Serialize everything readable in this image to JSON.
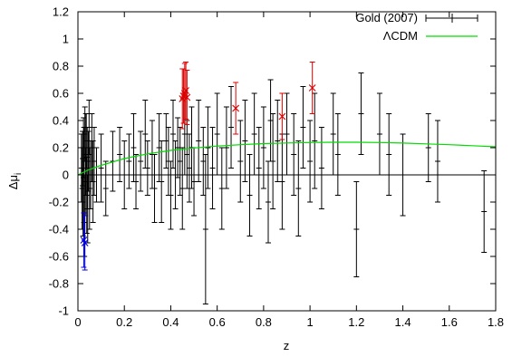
{
  "chart_data": {
    "type": "scatter",
    "title": "",
    "xlabel": "z",
    "ylabel_main": "Δμ",
    "ylabel_sub": "i",
    "xlim": [
      0,
      1.8
    ],
    "ylim": [
      -1,
      1.2
    ],
    "x_ticks": [
      0,
      0.2,
      0.4,
      0.6,
      0.8,
      1,
      1.2,
      1.4,
      1.6,
      1.8
    ],
    "x_tick_labels": [
      "0",
      "0.2",
      "0.4",
      "0.6",
      "0.8",
      "1",
      "1.2",
      "1.4",
      "1.6",
      "1.8"
    ],
    "y_ticks": [
      -1,
      -0.8,
      -0.6,
      -0.4,
      -0.2,
      0,
      0.2,
      0.4,
      0.6,
      0.8,
      1,
      1.2
    ],
    "y_tick_labels": [
      "-1",
      "-0.8",
      "-0.6",
      "-0.4",
      "-0.2",
      "0",
      "0.2",
      "0.4",
      "0.6",
      "0.8",
      "1",
      "1.2"
    ],
    "grid": false,
    "legend_position": "top-right",
    "zero_line": true,
    "series": [
      {
        "name": "Gold (2007)",
        "style": "points-with-errorbars",
        "color": "#000000",
        "points": [
          {
            "x": 0.015,
            "y": 0.05,
            "err": 0.25
          },
          {
            "x": 0.018,
            "y": -0.1,
            "err": 0.3
          },
          {
            "x": 0.02,
            "y": 0.12,
            "err": 0.2
          },
          {
            "x": 0.022,
            "y": -0.2,
            "err": 0.25
          },
          {
            "x": 0.024,
            "y": 0.2,
            "err": 0.22
          },
          {
            "x": 0.026,
            "y": 0.0,
            "err": 0.35
          },
          {
            "x": 0.028,
            "y": -0.3,
            "err": 0.3
          },
          {
            "x": 0.03,
            "y": 0.3,
            "err": 0.2
          },
          {
            "x": 0.032,
            "y": -0.05,
            "err": 0.25
          },
          {
            "x": 0.034,
            "y": 0.15,
            "err": 0.3
          },
          {
            "x": 0.036,
            "y": 0.25,
            "err": 0.2
          },
          {
            "x": 0.038,
            "y": -0.15,
            "err": 0.28
          },
          {
            "x": 0.04,
            "y": 0.05,
            "err": 0.3
          },
          {
            "x": 0.042,
            "y": -0.25,
            "err": 0.25
          },
          {
            "x": 0.045,
            "y": 0.1,
            "err": 0.22
          },
          {
            "x": 0.048,
            "y": 0.35,
            "err": 0.2
          },
          {
            "x": 0.05,
            "y": -0.1,
            "err": 0.3
          },
          {
            "x": 0.055,
            "y": 0.0,
            "err": 0.25
          },
          {
            "x": 0.06,
            "y": 0.2,
            "err": 0.25
          },
          {
            "x": 0.065,
            "y": -0.05,
            "err": 0.3
          },
          {
            "x": 0.07,
            "y": 0.1,
            "err": 0.25
          },
          {
            "x": 0.08,
            "y": 0.0,
            "err": 0.2
          },
          {
            "x": 0.1,
            "y": 0.05,
            "err": 0.25
          },
          {
            "x": 0.12,
            "y": -0.1,
            "err": 0.2
          },
          {
            "x": 0.15,
            "y": 0.1,
            "err": 0.22
          },
          {
            "x": 0.18,
            "y": 0.15,
            "err": 0.2
          },
          {
            "x": 0.2,
            "y": 0.0,
            "err": 0.25
          },
          {
            "x": 0.22,
            "y": 0.1,
            "err": 0.2
          },
          {
            "x": 0.24,
            "y": 0.2,
            "err": 0.25
          },
          {
            "x": 0.25,
            "y": -0.05,
            "err": 0.2
          },
          {
            "x": 0.27,
            "y": 0.1,
            "err": 0.22
          },
          {
            "x": 0.29,
            "y": 0.3,
            "err": 0.25
          },
          {
            "x": 0.3,
            "y": 0.05,
            "err": 0.2
          },
          {
            "x": 0.32,
            "y": 0.15,
            "err": 0.25
          },
          {
            "x": 0.33,
            "y": -0.1,
            "err": 0.25
          },
          {
            "x": 0.35,
            "y": 0.2,
            "err": 0.25
          },
          {
            "x": 0.36,
            "y": -0.05,
            "err": 0.3
          },
          {
            "x": 0.38,
            "y": 0.25,
            "err": 0.2
          },
          {
            "x": 0.39,
            "y": 0.1,
            "err": 0.25
          },
          {
            "x": 0.4,
            "y": -0.15,
            "err": 0.25
          },
          {
            "x": 0.41,
            "y": 0.3,
            "err": 0.25
          },
          {
            "x": 0.42,
            "y": 0.0,
            "err": 0.25
          },
          {
            "x": 0.43,
            "y": 0.2,
            "err": 0.22
          },
          {
            "x": 0.44,
            "y": 0.1,
            "err": 0.25
          },
          {
            "x": 0.45,
            "y": -0.1,
            "err": 0.3
          },
          {
            "x": 0.46,
            "y": 0.3,
            "err": 0.3
          },
          {
            "x": 0.47,
            "y": 0.15,
            "err": 0.25
          },
          {
            "x": 0.48,
            "y": 0.05,
            "err": 0.25
          },
          {
            "x": 0.49,
            "y": 0.2,
            "err": 0.3
          },
          {
            "x": 0.5,
            "y": -0.05,
            "err": 0.25
          },
          {
            "x": 0.52,
            "y": 0.25,
            "err": 0.3
          },
          {
            "x": 0.54,
            "y": 0.1,
            "err": 0.25
          },
          {
            "x": 0.55,
            "y": -0.4,
            "err": 0.55
          },
          {
            "x": 0.56,
            "y": 0.2,
            "err": 0.3
          },
          {
            "x": 0.58,
            "y": 0.05,
            "err": 0.3
          },
          {
            "x": 0.6,
            "y": 0.3,
            "err": 0.3
          },
          {
            "x": 0.62,
            "y": -0.1,
            "err": 0.3
          },
          {
            "x": 0.64,
            "y": 0.2,
            "err": 0.3
          },
          {
            "x": 0.66,
            "y": 0.35,
            "err": 0.3
          },
          {
            "x": 0.7,
            "y": 0.1,
            "err": 0.3
          },
          {
            "x": 0.72,
            "y": 0.25,
            "err": 0.3
          },
          {
            "x": 0.74,
            "y": -0.15,
            "err": 0.3
          },
          {
            "x": 0.76,
            "y": 0.3,
            "err": 0.3
          },
          {
            "x": 0.78,
            "y": 0.05,
            "err": 0.3
          },
          {
            "x": 0.8,
            "y": 0.2,
            "err": 0.3
          },
          {
            "x": 0.82,
            "y": -0.2,
            "err": 0.3
          },
          {
            "x": 0.83,
            "y": 0.4,
            "err": 0.3
          },
          {
            "x": 0.84,
            "y": 0.1,
            "err": 0.35
          },
          {
            "x": 0.86,
            "y": 0.25,
            "err": 0.3
          },
          {
            "x": 0.88,
            "y": -0.05,
            "err": 0.35
          },
          {
            "x": 0.9,
            "y": 0.3,
            "err": 0.3
          },
          {
            "x": 0.93,
            "y": 0.15,
            "err": 0.3
          },
          {
            "x": 0.95,
            "y": -0.1,
            "err": 0.35
          },
          {
            "x": 0.97,
            "y": 0.35,
            "err": 0.3
          },
          {
            "x": 1.0,
            "y": 0.1,
            "err": 0.3
          },
          {
            "x": 1.02,
            "y": 0.25,
            "err": 0.35
          },
          {
            "x": 1.05,
            "y": 0.05,
            "err": 0.3
          },
          {
            "x": 1.1,
            "y": 0.3,
            "err": 0.3
          },
          {
            "x": 1.12,
            "y": 0.15,
            "err": 0.3
          },
          {
            "x": 1.2,
            "y": -0.4,
            "err": 0.35
          },
          {
            "x": 1.22,
            "y": 0.45,
            "err": 0.3
          },
          {
            "x": 1.3,
            "y": 0.3,
            "err": 0.3
          },
          {
            "x": 1.34,
            "y": 0.15,
            "err": 0.3
          },
          {
            "x": 1.4,
            "y": 0.0,
            "err": 0.3
          },
          {
            "x": 1.51,
            "y": 0.2,
            "err": 0.25
          },
          {
            "x": 1.55,
            "y": 0.1,
            "err": 0.3
          },
          {
            "x": 1.75,
            "y": -0.27,
            "err": 0.3
          }
        ]
      },
      {
        "name": "ΛCDM",
        "style": "line",
        "color": "#00dd00",
        "points": [
          {
            "x": 0,
            "y": 0.0
          },
          {
            "x": 0.05,
            "y": 0.04
          },
          {
            "x": 0.1,
            "y": 0.07
          },
          {
            "x": 0.15,
            "y": 0.095
          },
          {
            "x": 0.2,
            "y": 0.12
          },
          {
            "x": 0.3,
            "y": 0.155
          },
          {
            "x": 0.4,
            "y": 0.18
          },
          {
            "x": 0.5,
            "y": 0.198
          },
          {
            "x": 0.6,
            "y": 0.212
          },
          {
            "x": 0.7,
            "y": 0.222
          },
          {
            "x": 0.8,
            "y": 0.23
          },
          {
            "x": 0.9,
            "y": 0.235
          },
          {
            "x": 1.0,
            "y": 0.238
          },
          {
            "x": 1.1,
            "y": 0.24
          },
          {
            "x": 1.2,
            "y": 0.24
          },
          {
            "x": 1.3,
            "y": 0.238
          },
          {
            "x": 1.4,
            "y": 0.234
          },
          {
            "x": 1.5,
            "y": 0.228
          },
          {
            "x": 1.6,
            "y": 0.222
          },
          {
            "x": 1.7,
            "y": 0.215
          },
          {
            "x": 1.8,
            "y": 0.207
          }
        ]
      },
      {
        "name": "",
        "style": "x-markers-with-errorbars",
        "color": "#dd0000",
        "points": [
          {
            "x": 0.45,
            "y": 0.56,
            "err": 0.22
          },
          {
            "x": 0.455,
            "y": 0.58,
            "err": 0.2
          },
          {
            "x": 0.46,
            "y": 0.6,
            "err": 0.22
          },
          {
            "x": 0.465,
            "y": 0.62,
            "err": 0.21
          },
          {
            "x": 0.47,
            "y": 0.57,
            "err": 0.2
          },
          {
            "x": 0.68,
            "y": 0.49,
            "err": 0.19
          },
          {
            "x": 0.88,
            "y": 0.43,
            "err": 0.17
          },
          {
            "x": 1.01,
            "y": 0.64,
            "err": 0.19
          }
        ]
      },
      {
        "name": "",
        "style": "x-markers-with-errorbars",
        "color": "#0000dd",
        "points": [
          {
            "x": 0.025,
            "y": -0.48,
            "err": 0.2
          },
          {
            "x": 0.03,
            "y": -0.5,
            "err": 0.2
          }
        ]
      }
    ]
  }
}
